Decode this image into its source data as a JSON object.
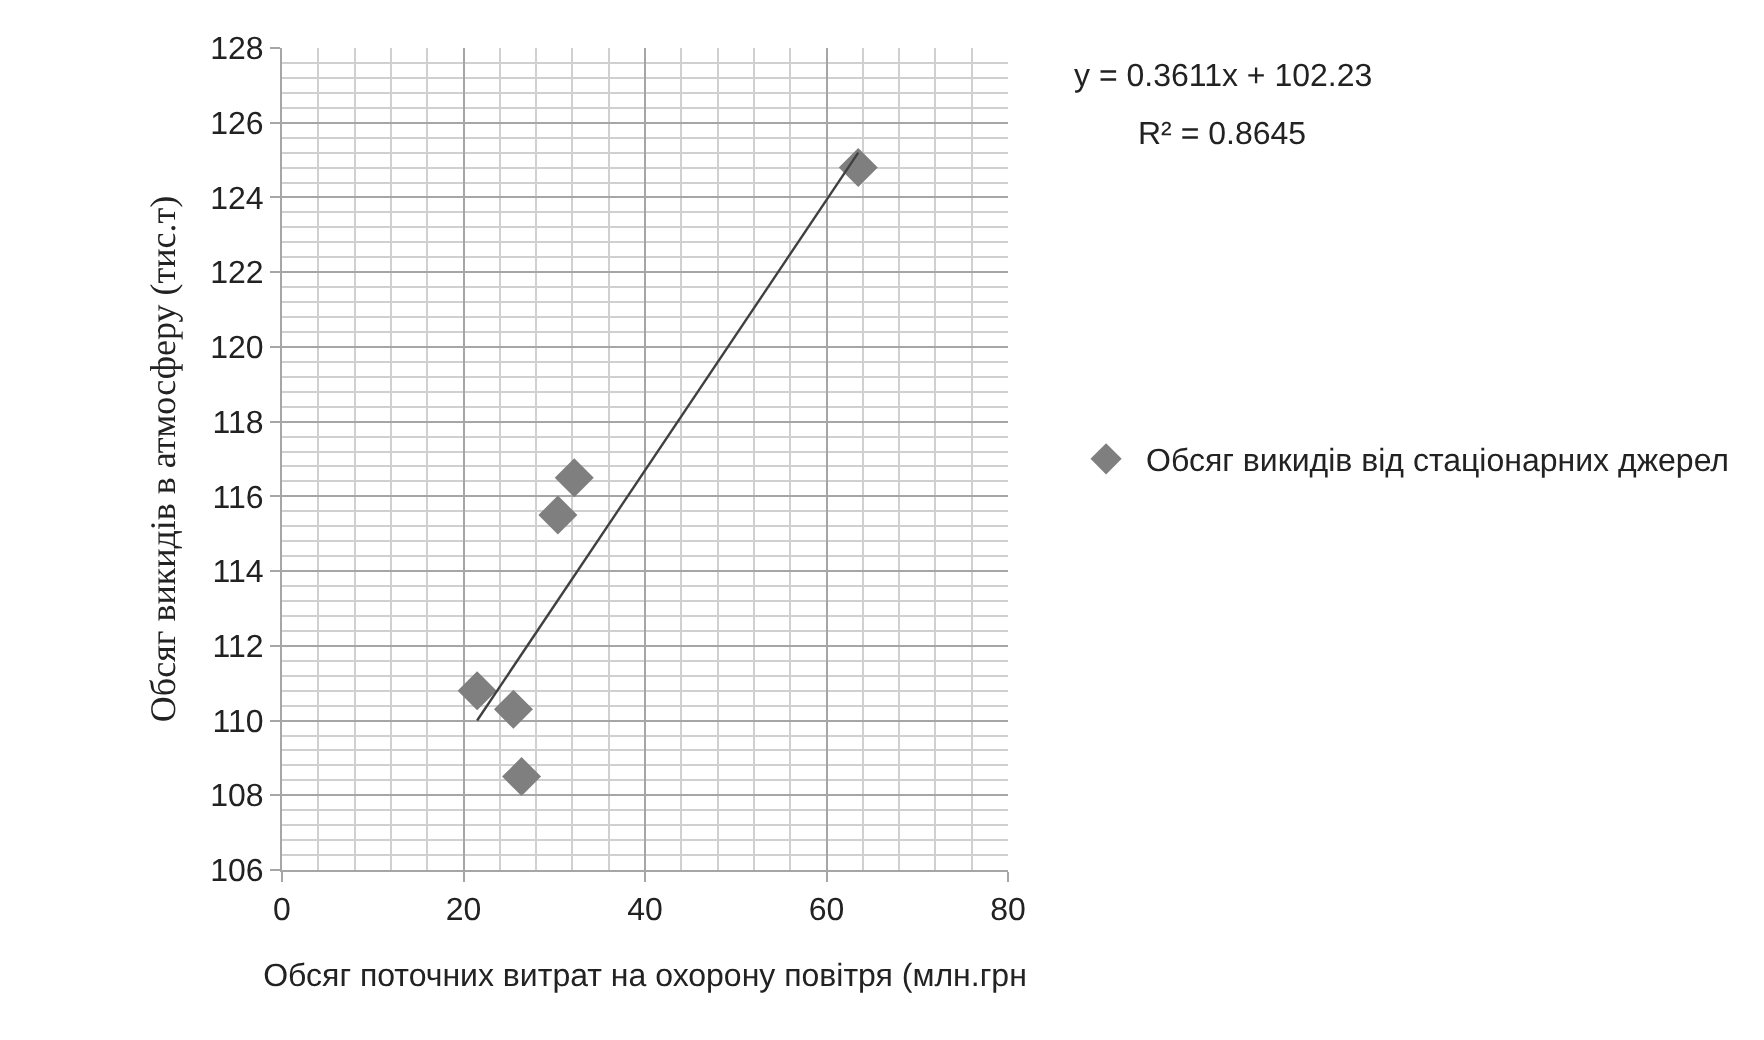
{
  "chart_data": {
    "type": "scatter",
    "xlabel": "Обсяг поточних витрат на охорону повітря (млн.грн",
    "ylabel": "Обсяг викидів в атмосферу (тис.т)",
    "annotations": [
      "y = 0.3611x + 102.23",
      "R² = 0.8645"
    ],
    "series": [
      {
        "name": "Обсяг викидів від стаціонарних джерел",
        "color": "#7f7f7f",
        "x": [
          21.5,
          25.5,
          26.4,
          30.4,
          32.2,
          63.5
        ],
        "values": [
          110.8,
          110.3,
          108.5,
          115.5,
          116.5,
          124.8
        ],
        "marker": "diamond"
      },
      {
        "type": "line",
        "color": "#404040",
        "x": [
          21.5,
          63.5
        ],
        "values": [
          110.0,
          125.2
        ],
        "marker": "none",
        "line_style": "solid"
      }
    ],
    "xlim": [
      0,
      80
    ],
    "xticks": [
      0,
      20,
      40,
      60,
      80
    ],
    "ylim": [
      106,
      128
    ],
    "yticks": [
      106,
      108,
      110,
      112,
      114,
      116,
      118,
      120,
      122,
      124,
      126,
      128
    ],
    "grid": true,
    "legend": "right"
  }
}
